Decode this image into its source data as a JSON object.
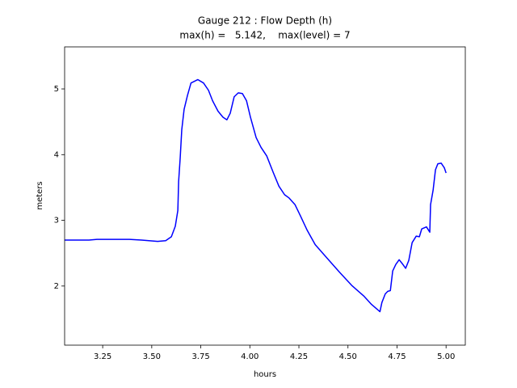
{
  "chart_data": {
    "type": "line",
    "title": "Gauge 212 : Flow Depth (h)",
    "subtitle": "max(h) =   5.142,    max(level) = 7",
    "xlabel": "hours",
    "ylabel": "meters",
    "x": [
      3.056,
      3.18,
      3.221,
      3.3,
      3.386,
      3.448,
      3.53,
      3.571,
      3.6,
      3.62,
      3.633,
      3.637,
      3.645,
      3.653,
      3.665,
      3.682,
      3.7,
      3.735,
      3.764,
      3.789,
      3.81,
      3.838,
      3.863,
      3.883,
      3.9,
      3.92,
      3.941,
      3.962,
      3.983,
      4.003,
      4.032,
      4.057,
      4.086,
      4.119,
      4.148,
      4.177,
      4.2,
      4.23,
      4.259,
      4.292,
      4.333,
      4.395,
      4.457,
      4.519,
      4.58,
      4.62,
      4.663,
      4.673,
      4.69,
      4.703,
      4.716,
      4.728,
      4.744,
      4.761,
      4.777,
      4.794,
      4.81,
      4.827,
      4.848,
      4.864,
      4.876,
      4.9,
      4.917,
      4.921,
      4.934,
      4.946,
      4.958,
      4.975,
      4.991,
      5.0
    ],
    "series": [
      {
        "name": "h",
        "color": "#0000ff",
        "values": [
          2.7,
          2.7,
          2.71,
          2.71,
          2.71,
          2.7,
          2.68,
          2.69,
          2.75,
          2.91,
          3.15,
          3.59,
          3.95,
          4.38,
          4.69,
          4.9,
          5.09,
          5.142,
          5.09,
          4.98,
          4.82,
          4.66,
          4.57,
          4.53,
          4.63,
          4.88,
          4.94,
          4.93,
          4.82,
          4.57,
          4.26,
          4.11,
          3.98,
          3.73,
          3.52,
          3.39,
          3.34,
          3.24,
          3.06,
          2.85,
          2.63,
          2.42,
          2.21,
          2.01,
          1.85,
          1.72,
          1.61,
          1.75,
          1.88,
          1.92,
          1.93,
          2.23,
          2.33,
          2.4,
          2.34,
          2.27,
          2.39,
          2.66,
          2.76,
          2.75,
          2.87,
          2.9,
          2.82,
          3.24,
          3.46,
          3.77,
          3.86,
          3.87,
          3.8,
          3.72
        ]
      }
    ],
    "xlim": [
      3.056,
      5.098
    ],
    "ylim": [
      1.1,
      5.64
    ],
    "xticks": [
      3.25,
      {
        "value": 3.5,
        "label": "3.50"
      },
      3.75,
      {
        "value": 4,
        "label": "4.00"
      },
      4.25,
      {
        "value": 4.5,
        "label": "4.50"
      },
      4.75,
      {
        "value": 5,
        "label": "5.00"
      }
    ],
    "yticks": [
      2,
      3,
      4,
      5
    ],
    "grid": false
  }
}
